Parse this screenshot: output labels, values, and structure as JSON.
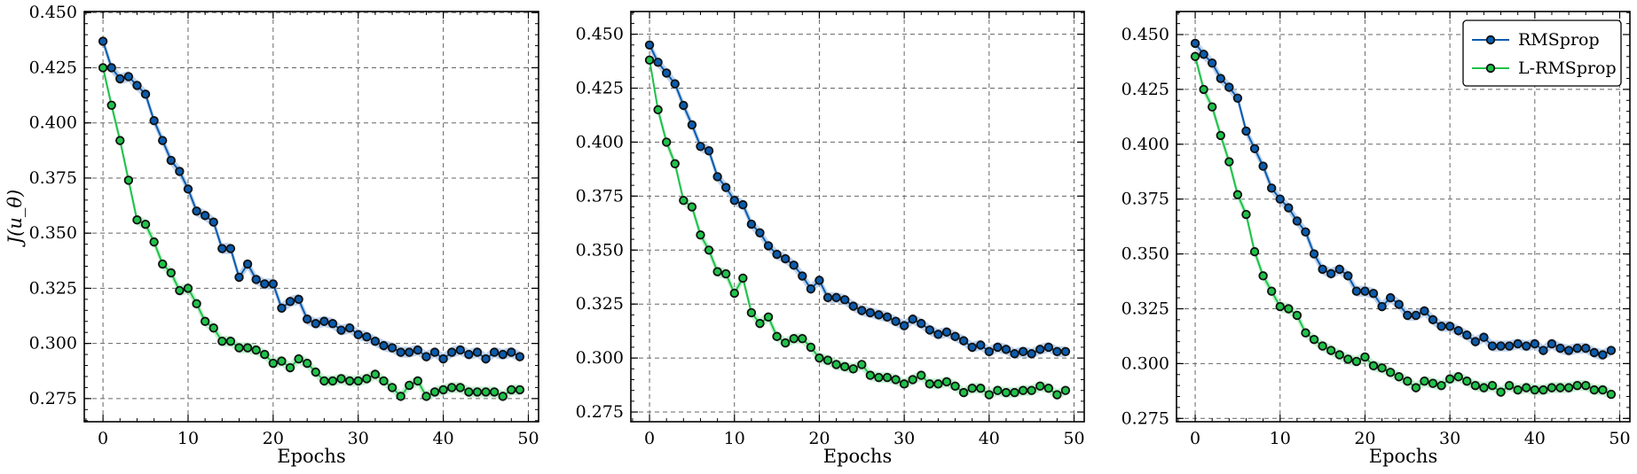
{
  "chart_data": [
    {
      "type": "line",
      "xlabel": "Epochs",
      "ylabel": "J(u_θ)",
      "xlim": [
        -2.2,
        51.2
      ],
      "ylim": [
        0.2645,
        0.4505
      ],
      "xticks": [
        0,
        10,
        20,
        30,
        40,
        50
      ],
      "yticks": [
        0.275,
        0.3,
        0.325,
        0.35,
        0.375,
        0.4,
        0.425,
        0.45
      ],
      "ytick_labels": [
        "0.275",
        "0.300",
        "0.325",
        "0.350",
        "0.375",
        "0.400",
        "0.425",
        "0.450"
      ],
      "grid": true,
      "legend": null,
      "series": [
        {
          "name": "RMSprop",
          "color": "#0b5cad",
          "band_color": "#a9c4e8",
          "x": [
            0,
            1,
            2,
            3,
            4,
            5,
            6,
            7,
            8,
            9,
            10,
            11,
            12,
            13,
            14,
            15,
            16,
            17,
            18,
            19,
            20,
            21,
            22,
            23,
            24,
            25,
            26,
            27,
            28,
            29,
            30,
            31,
            32,
            33,
            34,
            35,
            36,
            37,
            38,
            39,
            40,
            41,
            42,
            43,
            44,
            45,
            46,
            47,
            48,
            49
          ],
          "values": [
            0.437,
            0.425,
            0.42,
            0.421,
            0.417,
            0.413,
            0.401,
            0.392,
            0.383,
            0.378,
            0.37,
            0.36,
            0.358,
            0.355,
            0.343,
            0.343,
            0.33,
            0.336,
            0.329,
            0.327,
            0.327,
            0.316,
            0.319,
            0.32,
            0.311,
            0.309,
            0.31,
            0.309,
            0.306,
            0.307,
            0.304,
            0.303,
            0.301,
            0.299,
            0.298,
            0.296,
            0.296,
            0.297,
            0.294,
            0.296,
            0.293,
            0.296,
            0.297,
            0.295,
            0.296,
            0.293,
            0.296,
            0.295,
            0.296,
            0.294
          ],
          "band": 0.0025
        },
        {
          "name": "L-RMSprop",
          "color": "#1fc24a",
          "band_color": "#b4ecc3",
          "x": [
            0,
            1,
            2,
            3,
            4,
            5,
            6,
            7,
            8,
            9,
            10,
            11,
            12,
            13,
            14,
            15,
            16,
            17,
            18,
            19,
            20,
            21,
            22,
            23,
            24,
            25,
            26,
            27,
            28,
            29,
            30,
            31,
            32,
            33,
            34,
            35,
            36,
            37,
            38,
            39,
            40,
            41,
            42,
            43,
            44,
            45,
            46,
            47,
            48,
            49
          ],
          "values": [
            0.425,
            0.408,
            0.392,
            0.374,
            0.356,
            0.354,
            0.346,
            0.336,
            0.332,
            0.324,
            0.325,
            0.318,
            0.31,
            0.307,
            0.301,
            0.301,
            0.298,
            0.298,
            0.297,
            0.295,
            0.291,
            0.292,
            0.289,
            0.293,
            0.291,
            0.287,
            0.283,
            0.283,
            0.284,
            0.283,
            0.283,
            0.284,
            0.286,
            0.283,
            0.28,
            0.276,
            0.281,
            0.283,
            0.276,
            0.278,
            0.279,
            0.28,
            0.28,
            0.278,
            0.278,
            0.278,
            0.278,
            0.276,
            0.279,
            0.279
          ],
          "band": 0.0025
        }
      ]
    },
    {
      "type": "line",
      "xlabel": "Epochs",
      "ylabel": "",
      "xlim": [
        -2.2,
        51.2
      ],
      "ylim": [
        0.2705,
        0.4605
      ],
      "xticks": [
        0,
        10,
        20,
        30,
        40,
        50
      ],
      "yticks": [
        0.275,
        0.3,
        0.325,
        0.35,
        0.375,
        0.4,
        0.425,
        0.45
      ],
      "ytick_labels": [
        "0.275",
        "0.300",
        "0.325",
        "0.350",
        "0.375",
        "0.400",
        "0.425",
        "0.450"
      ],
      "grid": true,
      "legend": null,
      "series": [
        {
          "name": "RMSprop",
          "color": "#0b5cad",
          "band_color": "#a9c4e8",
          "x": [
            0,
            1,
            2,
            3,
            4,
            5,
            6,
            7,
            8,
            9,
            10,
            11,
            12,
            13,
            14,
            15,
            16,
            17,
            18,
            19,
            20,
            21,
            22,
            23,
            24,
            25,
            26,
            27,
            28,
            29,
            30,
            31,
            32,
            33,
            34,
            35,
            36,
            37,
            38,
            39,
            40,
            41,
            42,
            43,
            44,
            45,
            46,
            47,
            48,
            49
          ],
          "values": [
            0.445,
            0.437,
            0.432,
            0.427,
            0.417,
            0.408,
            0.398,
            0.396,
            0.384,
            0.379,
            0.373,
            0.371,
            0.362,
            0.358,
            0.352,
            0.348,
            0.346,
            0.343,
            0.338,
            0.332,
            0.336,
            0.328,
            0.328,
            0.327,
            0.324,
            0.322,
            0.321,
            0.32,
            0.319,
            0.317,
            0.315,
            0.318,
            0.316,
            0.313,
            0.311,
            0.312,
            0.31,
            0.308,
            0.305,
            0.306,
            0.303,
            0.305,
            0.304,
            0.302,
            0.303,
            0.302,
            0.304,
            0.305,
            0.303,
            0.303
          ],
          "band": 0.0025
        },
        {
          "name": "L-RMSprop",
          "color": "#1fc24a",
          "band_color": "#b4ecc3",
          "x": [
            0,
            1,
            2,
            3,
            4,
            5,
            6,
            7,
            8,
            9,
            10,
            11,
            12,
            13,
            14,
            15,
            16,
            17,
            18,
            19,
            20,
            21,
            22,
            23,
            24,
            25,
            26,
            27,
            28,
            29,
            30,
            31,
            32,
            33,
            34,
            35,
            36,
            37,
            38,
            39,
            40,
            41,
            42,
            43,
            44,
            45,
            46,
            47,
            48,
            49
          ],
          "values": [
            0.438,
            0.415,
            0.4,
            0.39,
            0.373,
            0.37,
            0.357,
            0.35,
            0.34,
            0.339,
            0.33,
            0.337,
            0.321,
            0.316,
            0.319,
            0.31,
            0.307,
            0.309,
            0.309,
            0.305,
            0.3,
            0.299,
            0.297,
            0.296,
            0.295,
            0.297,
            0.292,
            0.291,
            0.291,
            0.29,
            0.288,
            0.29,
            0.292,
            0.288,
            0.288,
            0.289,
            0.287,
            0.284,
            0.286,
            0.286,
            0.283,
            0.285,
            0.284,
            0.284,
            0.285,
            0.285,
            0.287,
            0.286,
            0.283,
            0.285
          ],
          "band": 0.0025
        }
      ]
    },
    {
      "type": "line",
      "xlabel": "Epochs",
      "ylabel": "",
      "xlim": [
        -2.2,
        51.2
      ],
      "ylim": [
        0.2735,
        0.4605
      ],
      "xticks": [
        0,
        10,
        20,
        30,
        40,
        50
      ],
      "yticks": [
        0.275,
        0.3,
        0.325,
        0.35,
        0.375,
        0.4,
        0.425,
        0.45
      ],
      "ytick_labels": [
        "0.275",
        "0.300",
        "0.325",
        "0.350",
        "0.375",
        "0.400",
        "0.425",
        "0.450"
      ],
      "grid": true,
      "legend": "top-right",
      "series": [
        {
          "name": "RMSprop",
          "color": "#0b5cad",
          "band_color": "#a9c4e8",
          "x": [
            0,
            1,
            2,
            3,
            4,
            5,
            6,
            7,
            8,
            9,
            10,
            11,
            12,
            13,
            14,
            15,
            16,
            17,
            18,
            19,
            20,
            21,
            22,
            23,
            24,
            25,
            26,
            27,
            28,
            29,
            30,
            31,
            32,
            33,
            34,
            35,
            36,
            37,
            38,
            39,
            40,
            41,
            42,
            43,
            44,
            45,
            46,
            47,
            48,
            49
          ],
          "values": [
            0.446,
            0.441,
            0.437,
            0.43,
            0.426,
            0.421,
            0.406,
            0.398,
            0.39,
            0.38,
            0.375,
            0.371,
            0.365,
            0.36,
            0.35,
            0.343,
            0.341,
            0.343,
            0.34,
            0.333,
            0.333,
            0.332,
            0.326,
            0.33,
            0.327,
            0.322,
            0.322,
            0.324,
            0.32,
            0.317,
            0.317,
            0.315,
            0.313,
            0.31,
            0.312,
            0.308,
            0.308,
            0.308,
            0.309,
            0.308,
            0.309,
            0.306,
            0.309,
            0.307,
            0.306,
            0.307,
            0.307,
            0.305,
            0.304,
            0.306
          ],
          "band": 0.0025
        },
        {
          "name": "L-RMSprop",
          "color": "#1fc24a",
          "band_color": "#b4ecc3",
          "x": [
            0,
            1,
            2,
            3,
            4,
            5,
            6,
            7,
            8,
            9,
            10,
            11,
            12,
            13,
            14,
            15,
            16,
            17,
            18,
            19,
            20,
            21,
            22,
            23,
            24,
            25,
            26,
            27,
            28,
            29,
            30,
            31,
            32,
            33,
            34,
            35,
            36,
            37,
            38,
            39,
            40,
            41,
            42,
            43,
            44,
            45,
            46,
            47,
            48,
            49
          ],
          "values": [
            0.44,
            0.425,
            0.417,
            0.404,
            0.392,
            0.377,
            0.368,
            0.351,
            0.34,
            0.333,
            0.326,
            0.325,
            0.322,
            0.314,
            0.311,
            0.308,
            0.306,
            0.304,
            0.302,
            0.301,
            0.303,
            0.299,
            0.298,
            0.296,
            0.294,
            0.292,
            0.289,
            0.292,
            0.291,
            0.29,
            0.293,
            0.294,
            0.292,
            0.29,
            0.289,
            0.29,
            0.287,
            0.29,
            0.288,
            0.289,
            0.288,
            0.288,
            0.289,
            0.289,
            0.289,
            0.29,
            0.29,
            0.288,
            0.288,
            0.286
          ],
          "band": 0.0025
        }
      ]
    }
  ]
}
